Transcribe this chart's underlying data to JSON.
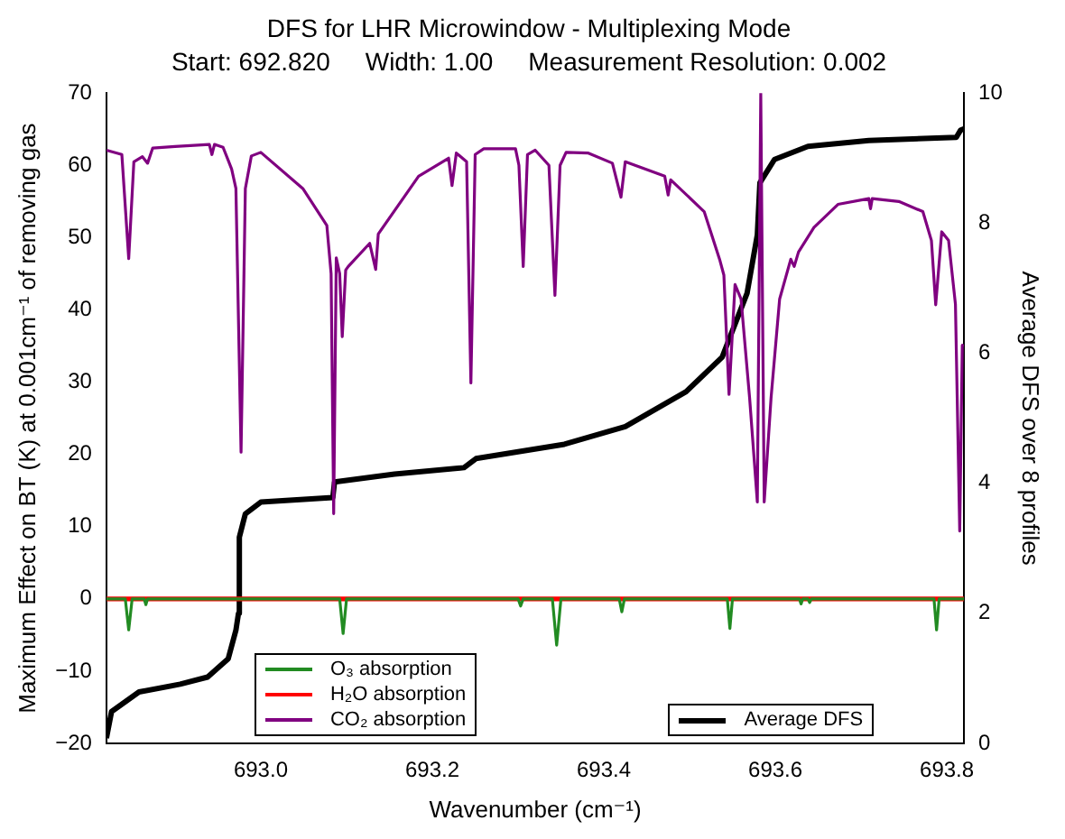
{
  "chart_data": {
    "type": "line",
    "title": "DFS for LHR Microwindow - Multiplexing Mode",
    "subtitle": "Start: 692.820     Width: 1.00     Measurement Resolution: 0.002",
    "xlabel": "Wavenumber (cm⁻¹)",
    "ylabel": "Maximum Effect on BT (K) at 0.001cm⁻¹ of removing gas",
    "y2label": "Average DFS over 8 profiles",
    "xlim": [
      692.82,
      693.82
    ],
    "xticks": [
      {
        "value": 693,
        "label": "693.0"
      },
      693.2,
      693.4,
      693.6,
      693.8
    ],
    "ylim": [
      -20,
      70
    ],
    "yticks": [
      {
        "value": -20,
        "label": "−20"
      },
      {
        "value": -10,
        "label": "−10"
      },
      0,
      10,
      20,
      30,
      40,
      50,
      60,
      70
    ],
    "y2lim": [
      0,
      10
    ],
    "y2ticks": [
      0,
      2,
      4,
      6,
      8,
      10
    ],
    "grid": false,
    "legend": "bottom",
    "marker": "none",
    "line_style": "solid",
    "series": [
      {
        "name": "O₃ absorption",
        "color": "#228b22",
        "x": [
          692.82,
          692.842,
          692.846,
          692.85,
          692.864,
          692.866,
          692.868,
          693.092,
          693.096,
          693.1,
          693.3,
          693.303,
          693.306,
          693.34,
          693.345,
          693.35,
          693.418,
          693.421,
          693.424,
          693.544,
          693.547,
          693.55,
          693.628,
          693.63,
          693.632,
          693.638,
          693.64,
          693.642,
          693.785,
          693.788,
          693.791,
          693.82
        ],
        "values": [
          0,
          0,
          -4.3,
          0,
          0,
          -0.8,
          0,
          0,
          -4.8,
          0,
          0,
          -1,
          0,
          0,
          -6.4,
          0,
          0,
          -1.8,
          0,
          0,
          -4.1,
          0,
          0,
          -0.7,
          0,
          0,
          -0.5,
          0,
          0,
          -4.3,
          0,
          0
        ]
      },
      {
        "name": "H₂O absorption",
        "color": "#ff0000",
        "x": [
          692.82,
          693.82
        ],
        "values": [
          0,
          0
        ]
      },
      {
        "name": "CO₂ absorption",
        "color": "#800080",
        "x": [
          692.82,
          692.838,
          692.846,
          692.852,
          692.862,
          692.868,
          692.874,
          692.9,
          692.94,
          692.943,
          692.946,
          692.956,
          692.966,
          692.971,
          692.977,
          692.982,
          692.989,
          693.0,
          693.049,
          693.077,
          693.082,
          693.085,
          693.088,
          693.092,
          693.095,
          693.099,
          693.102,
          693.127,
          693.134,
          693.137,
          693.184,
          693.219,
          693.223,
          693.228,
          693.24,
          693.245,
          693.25,
          693.26,
          693.297,
          693.301,
          693.306,
          693.311,
          693.32,
          693.336,
          693.343,
          693.349,
          693.356,
          693.382,
          693.41,
          693.42,
          693.425,
          693.471,
          693.475,
          693.478,
          693.517,
          693.535,
          693.54,
          693.546,
          693.553,
          693.56,
          693.57,
          693.579,
          693.583,
          693.587,
          693.595,
          693.605,
          693.618,
          693.622,
          693.627,
          693.645,
          693.673,
          693.709,
          693.711,
          693.713,
          693.744,
          693.772,
          693.782,
          693.787,
          693.794,
          693.802,
          693.81,
          693.815,
          693.818,
          693.82
        ],
        "values": [
          62.1,
          61.5,
          47.1,
          60.5,
          61.2,
          60.3,
          62.4,
          62.6,
          62.9,
          61.5,
          62.9,
          62.5,
          59.5,
          56.8,
          20.3,
          56.8,
          61.3,
          61.8,
          56.8,
          51.7,
          45,
          11.8,
          47.2,
          45,
          36.3,
          45.5,
          46,
          49.2,
          45.6,
          50.5,
          58.5,
          61,
          57.2,
          61.7,
          60.5,
          29.9,
          61.5,
          62.3,
          62.3,
          60,
          46,
          61.5,
          62.1,
          60,
          42,
          60,
          61.8,
          61.7,
          60.3,
          55.6,
          60.5,
          58.5,
          55.9,
          58,
          53.6,
          47,
          44.8,
          28.3,
          43.5,
          41.5,
          27.8,
          13.4,
          70,
          13.4,
          27.8,
          41.5,
          47,
          46,
          48,
          51.4,
          54.6,
          55.4,
          54,
          55.4,
          55,
          53.6,
          49.6,
          40.7,
          50.8,
          49.6,
          40.8,
          9.4,
          35.1,
          35
        ]
      },
      {
        "name": "Average DFS",
        "color": "#000000",
        "axis": "y2",
        "x": [
          692.82,
          692.826,
          692.858,
          692.906,
          692.938,
          692.962,
          692.971,
          692.974,
          692.975,
          692.982,
          693.0,
          693.084,
          693.086,
          693.156,
          693.237,
          693.251,
          693.354,
          693.425,
          693.496,
          693.538,
          693.567,
          693.579,
          693.582,
          693.599,
          693.638,
          693.709,
          693.811,
          693.816,
          693.82
        ],
        "values": [
          0.08,
          0.49,
          0.79,
          0.91,
          1.02,
          1.3,
          1.74,
          2.0,
          3.17,
          3.53,
          3.71,
          3.78,
          4.02,
          4.14,
          4.24,
          4.38,
          4.6,
          4.87,
          5.41,
          5.94,
          6.92,
          7.82,
          8.62,
          8.98,
          9.18,
          9.27,
          9.32,
          9.43,
          9.45
        ]
      }
    ]
  }
}
